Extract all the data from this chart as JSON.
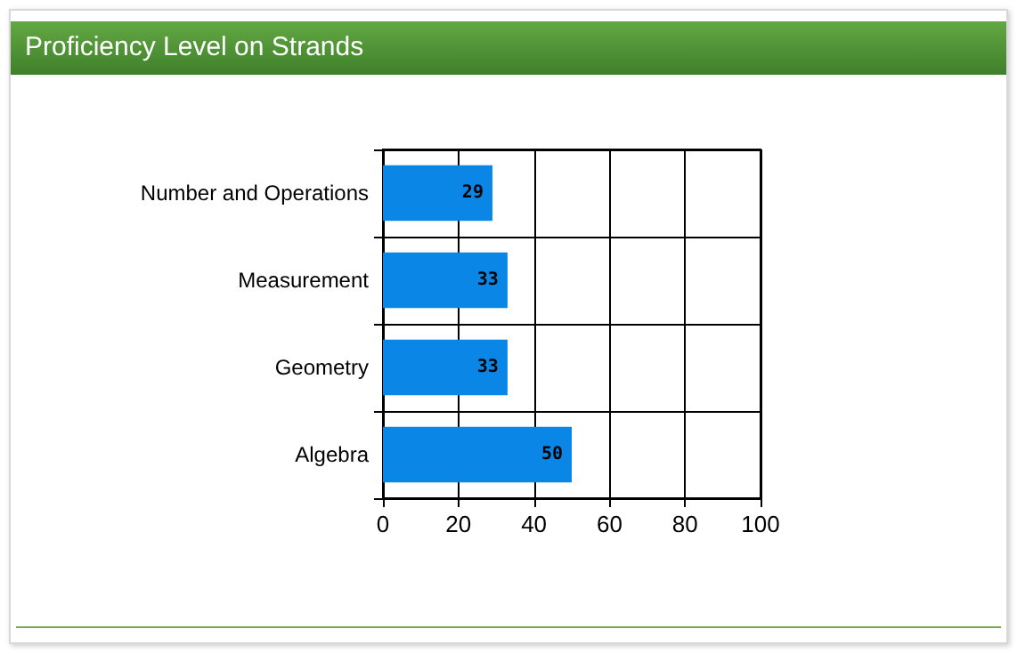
{
  "chart_data": {
    "type": "bar",
    "orientation": "horizontal",
    "title": "Proficiency Level on Strands",
    "categories": [
      "Number and Operations",
      "Measurement",
      "Geometry",
      "Algebra"
    ],
    "values": [
      29,
      33,
      33,
      50
    ],
    "color": "#0a86e6",
    "xlim": [
      0,
      100
    ],
    "xticks": [
      0,
      20,
      40,
      60,
      80,
      100
    ],
    "grid": true,
    "data_labels": true
  }
}
